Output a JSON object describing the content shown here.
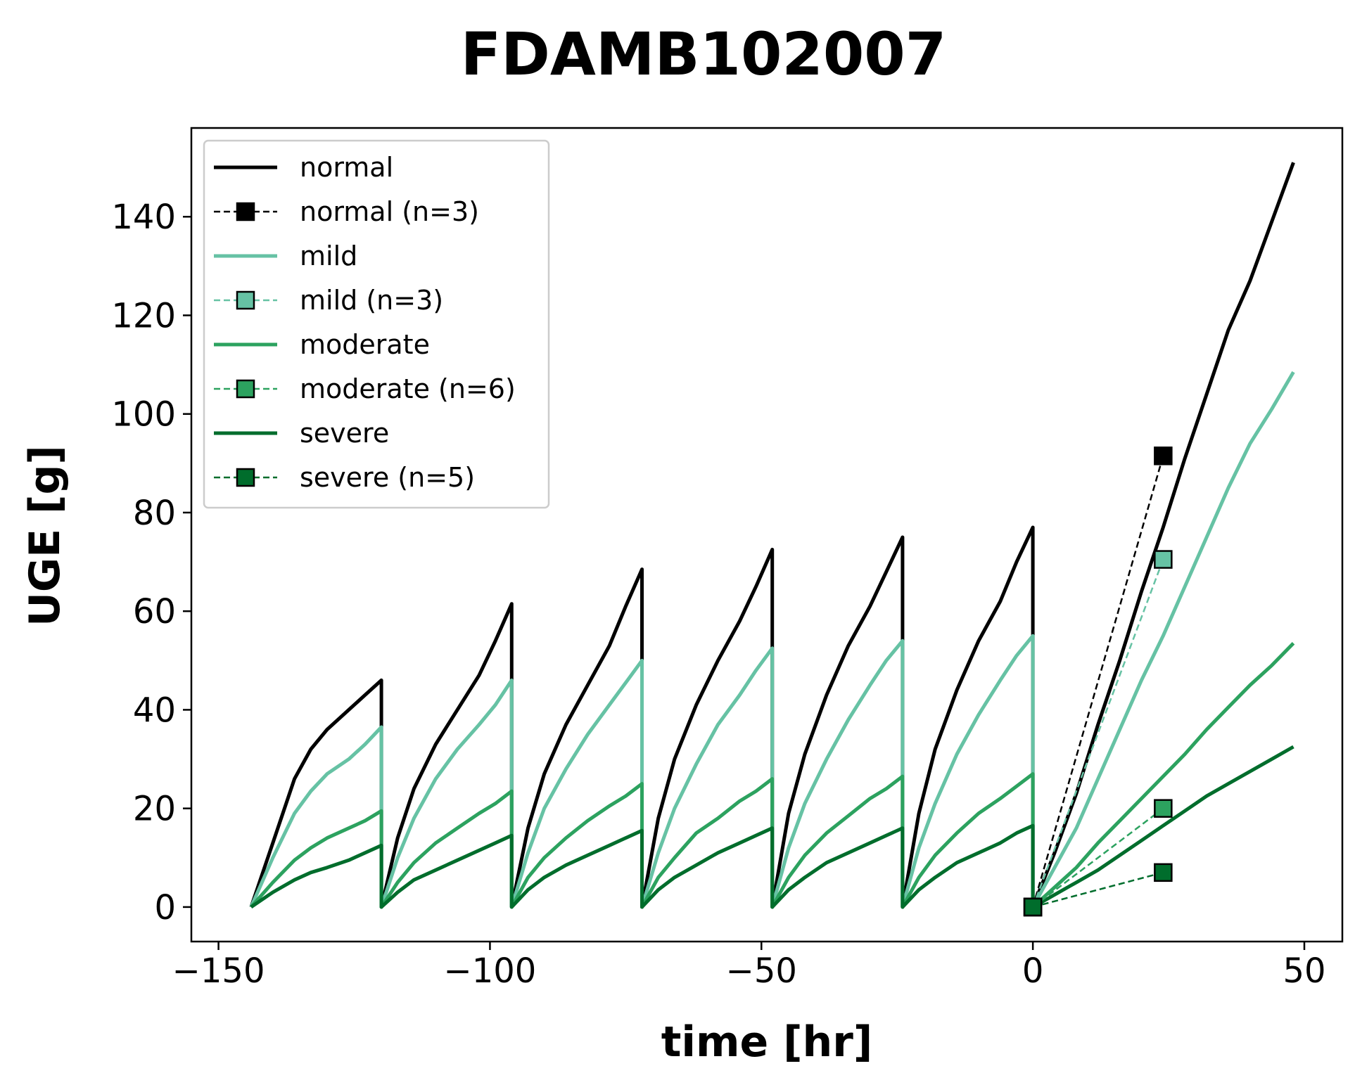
{
  "chart_data": {
    "type": "line",
    "title": "FDAMB102007",
    "xlabel": "time [hr]",
    "ylabel": "UGE [g]",
    "xlim": [
      -155,
      57
    ],
    "ylim": [
      -7,
      158
    ],
    "xticks": [
      -150,
      -100,
      -50,
      0,
      50
    ],
    "xtick_labels": [
      "−150",
      "−100",
      "−50",
      "0",
      "50"
    ],
    "yticks": [
      0,
      20,
      40,
      60,
      80,
      100,
      120,
      140
    ],
    "ytick_labels": [
      "0",
      "20",
      "40",
      "60",
      "80",
      "100",
      "120",
      "140"
    ],
    "grid": false,
    "legend_position": "top-left",
    "series": [
      {
        "name": "normal",
        "kind": "line",
        "color": "#000000",
        "x": [
          -144,
          -140,
          -136,
          -133,
          -130,
          -126,
          -123,
          -120,
          -120,
          -117,
          -114,
          -110,
          -106,
          -102,
          -99,
          -96,
          -96,
          -93,
          -90,
          -86,
          -82,
          -78,
          -75,
          -72,
          -72,
          -69,
          -66,
          -62,
          -58,
          -54,
          -51,
          -48,
          -48,
          -45,
          -42,
          -38,
          -34,
          -30,
          -27,
          -24,
          -24,
          -21,
          -18,
          -14,
          -10,
          -6,
          -3,
          0,
          0,
          4,
          8,
          12,
          16,
          20,
          24,
          28,
          32,
          36,
          40,
          44,
          48
        ],
        "y": [
          0,
          13,
          26,
          32,
          36,
          40,
          43,
          46,
          0,
          14,
          24,
          33,
          40,
          47,
          54,
          61.5,
          0,
          16,
          27,
          37,
          45,
          53,
          61,
          68.5,
          0,
          18,
          30,
          41,
          50,
          58,
          65,
          72.5,
          0,
          19,
          31,
          43,
          53,
          61,
          68,
          75,
          0,
          19,
          32,
          44,
          54,
          62,
          70,
          77,
          0,
          11,
          23,
          37,
          50,
          64,
          77,
          91,
          104,
          117,
          127,
          139,
          151
        ]
      },
      {
        "name": "normal (n=3)",
        "kind": "points",
        "color": "#000000",
        "x": [
          0,
          24
        ],
        "y": [
          0,
          91.5
        ]
      },
      {
        "name": "mild",
        "kind": "line",
        "color": "#66c2a4",
        "x": [
          -144,
          -140,
          -136,
          -133,
          -130,
          -126,
          -123,
          -120,
          -120,
          -117,
          -114,
          -110,
          -106,
          -102,
          -99,
          -96,
          -96,
          -93,
          -90,
          -86,
          -82,
          -78,
          -75,
          -72,
          -72,
          -69,
          -66,
          -62,
          -58,
          -54,
          -51,
          -48,
          -48,
          -45,
          -42,
          -38,
          -34,
          -30,
          -27,
          -24,
          -24,
          -21,
          -18,
          -14,
          -10,
          -6,
          -3,
          0,
          0,
          4,
          8,
          12,
          16,
          20,
          24,
          28,
          32,
          36,
          40,
          44,
          48
        ],
        "y": [
          0,
          10,
          19,
          23.5,
          27,
          30,
          33,
          36.5,
          0,
          10,
          18,
          26,
          32,
          37,
          41,
          46,
          0,
          11,
          20,
          28,
          35,
          41,
          45.5,
          50,
          0,
          11,
          20,
          29,
          37,
          43,
          48,
          52.5,
          0,
          12,
          21,
          30,
          38,
          45,
          50,
          54,
          0,
          12,
          21,
          31,
          39,
          46,
          51,
          55,
          0,
          8,
          16,
          26,
          36,
          46,
          55,
          65,
          75,
          85,
          94,
          101,
          108.5
        ]
      },
      {
        "name": "mild (n=3)",
        "kind": "points",
        "color": "#66c2a4",
        "x": [
          0,
          24
        ],
        "y": [
          0,
          70.5
        ]
      },
      {
        "name": "moderate",
        "kind": "line",
        "color": "#2ca25f",
        "x": [
          -144,
          -140,
          -136,
          -133,
          -130,
          -126,
          -123,
          -120,
          -120,
          -117,
          -114,
          -110,
          -106,
          -102,
          -99,
          -96,
          -96,
          -93,
          -90,
          -86,
          -82,
          -78,
          -75,
          -72,
          -72,
          -69,
          -66,
          -62,
          -58,
          -54,
          -51,
          -48,
          -48,
          -45,
          -42,
          -38,
          -34,
          -30,
          -27,
          -24,
          -24,
          -21,
          -18,
          -14,
          -10,
          -6,
          -3,
          0,
          0,
          4,
          8,
          12,
          16,
          20,
          24,
          28,
          32,
          36,
          40,
          44,
          48
        ],
        "y": [
          0,
          5,
          9.5,
          12,
          14,
          16,
          17.5,
          19.5,
          0,
          5,
          9,
          13,
          16,
          19,
          21,
          23.5,
          0,
          6,
          10,
          14,
          17.5,
          20.5,
          22.5,
          25,
          0,
          6,
          10,
          15,
          18,
          21.5,
          23.5,
          26,
          0,
          6,
          10.5,
          15,
          18.5,
          22,
          24,
          26.5,
          0,
          6,
          10.5,
          15,
          19,
          22,
          24.5,
          27,
          0,
          4,
          8,
          13,
          17.5,
          22,
          26.5,
          31,
          36,
          40.5,
          45,
          49,
          53.5
        ]
      },
      {
        "name": "moderate (n=6)",
        "kind": "points",
        "color": "#2ca25f",
        "x": [
          0,
          24
        ],
        "y": [
          0,
          20
        ]
      },
      {
        "name": "severe",
        "kind": "line",
        "color": "#006d2c",
        "x": [
          -144,
          -140,
          -136,
          -133,
          -130,
          -126,
          -123,
          -120,
          -120,
          -117,
          -114,
          -110,
          -106,
          -102,
          -99,
          -96,
          -96,
          -93,
          -90,
          -86,
          -82,
          -78,
          -75,
          -72,
          -72,
          -69,
          -66,
          -62,
          -58,
          -54,
          -51,
          -48,
          -48,
          -45,
          -42,
          -38,
          -34,
          -30,
          -27,
          -24,
          -24,
          -21,
          -18,
          -14,
          -10,
          -6,
          -3,
          0,
          0,
          4,
          8,
          12,
          16,
          20,
          24,
          28,
          32,
          36,
          40,
          44,
          48
        ],
        "y": [
          0,
          3,
          5.5,
          7,
          8,
          9.5,
          11,
          12.5,
          0,
          3,
          5.5,
          7.5,
          9.5,
          11.5,
          13,
          14.5,
          0,
          3.5,
          6,
          8.5,
          10.5,
          12.5,
          14,
          15.5,
          0,
          3.5,
          6,
          8.5,
          11,
          13,
          14.5,
          16,
          0,
          3.5,
          6,
          9,
          11,
          13,
          14.5,
          16,
          0,
          3.5,
          6,
          9,
          11,
          13,
          15,
          16.5,
          0,
          2.5,
          5,
          7.5,
          10.5,
          13.5,
          16.5,
          19.5,
          22.5,
          25,
          27.5,
          30,
          32.5
        ]
      },
      {
        "name": "severe (n=5)",
        "kind": "points",
        "color": "#006d2c",
        "x": [
          0,
          24
        ],
        "y": [
          0,
          7
        ]
      }
    ]
  }
}
